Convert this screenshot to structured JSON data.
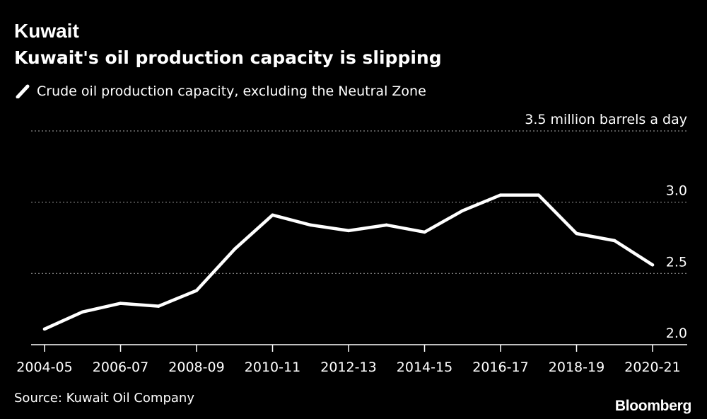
{
  "header": {
    "headline": "Kuwait",
    "subtitle": "Kuwait's oil production capacity is slipping"
  },
  "legend": {
    "label": "Crude oil production capacity, excluding the Neutral Zone"
  },
  "footer": {
    "source": "Source: Kuwait Oil Company",
    "brand": "Bloomberg"
  },
  "colors": {
    "background": "#000000",
    "line": "#ffffff",
    "grid": "#8a8a8a"
  },
  "chart_data": {
    "type": "line",
    "title": "Kuwait's oil production capacity is slipping",
    "xlabel": "",
    "ylabel": "million barrels a day",
    "ylim": [
      2.0,
      3.5
    ],
    "yticks": [
      2.0,
      2.5,
      3.0,
      3.5
    ],
    "ytick_labels": [
      "2.0",
      "2.5",
      "3.0",
      "3.5 million barrels a day"
    ],
    "x_tick_labels": [
      "2004-05",
      "2006-07",
      "2008-09",
      "2010-11",
      "2012-13",
      "2014-15",
      "2016-17",
      "2018-19",
      "2020-21"
    ],
    "categories": [
      "2004-05",
      "2005-06",
      "2006-07",
      "2007-08",
      "2008-09",
      "2009-10",
      "2010-11",
      "2011-12",
      "2012-13",
      "2013-14",
      "2014-15",
      "2015-16",
      "2016-17",
      "2017-18",
      "2018-19",
      "2019-20",
      "2020-21"
    ],
    "series": [
      {
        "name": "Crude oil production capacity, excluding the Neutral Zone",
        "values": [
          2.11,
          2.23,
          2.29,
          2.27,
          2.38,
          2.67,
          2.91,
          2.84,
          2.8,
          2.84,
          2.79,
          2.94,
          3.05,
          3.05,
          2.78,
          2.73,
          2.56
        ]
      }
    ]
  }
}
